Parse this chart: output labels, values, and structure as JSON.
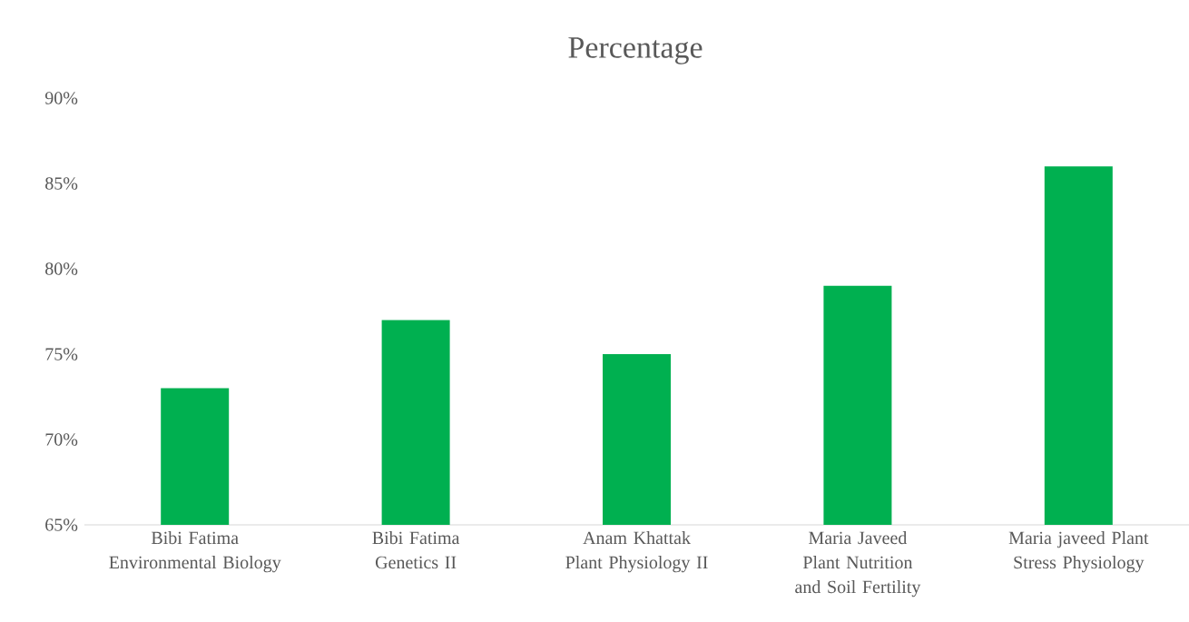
{
  "chart_data": {
    "type": "bar",
    "title": "Percentage",
    "categories": [
      "Bibi Fatima Environmental Biology",
      "Bibi Fatima Genetics II",
      "Anam Khattak Plant Physiology II",
      "Maria Javeed Plant Nutrition and Soil Fertility",
      "Maria javeed Plant Stress Physiology"
    ],
    "values": [
      73,
      77,
      75,
      79,
      86
    ],
    "color": "#00b050",
    "ylim": [
      65,
      90
    ],
    "yticks": [
      {
        "value": 65,
        "label": "65%"
      },
      {
        "value": 70,
        "label": "70%"
      },
      {
        "value": 75,
        "label": "75%"
      },
      {
        "value": 80,
        "label": "80%"
      },
      {
        "value": 85,
        "label": "85%"
      },
      {
        "value": 90,
        "label": "90%"
      }
    ]
  }
}
